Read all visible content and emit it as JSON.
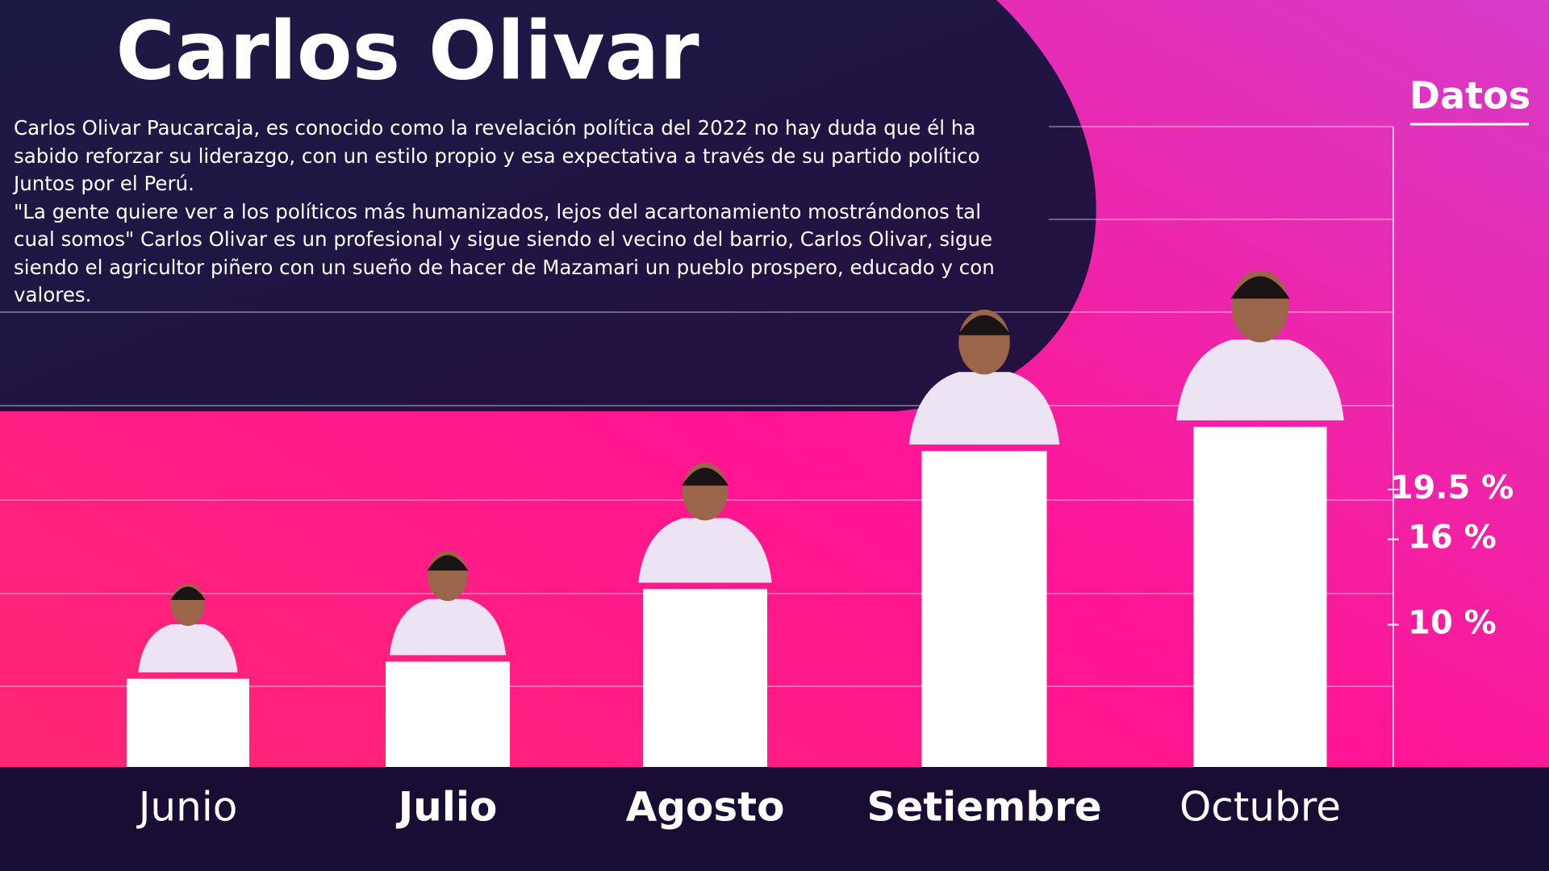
{
  "chart_data": {
    "type": "bar",
    "title": "Carlos Olivar",
    "description": [
      "Carlos Olivar Paucarcaja, es conocido como la revelación política del 2022 no hay duda que él ha sabido reforzar su liderazgo, con un estilo propio y esa expectativa a través de su partido político Juntos por el Perú.",
      "\"La gente quiere ver a los políticos más humanizados, lejos del acartonamiento mostrándonos tal cual somos\" Carlos Olivar es un profesional y sigue siendo el vecino del barrio, Carlos Olivar, sigue siendo el agricultor piñero con un sueño de hacer de Mazamari un pueblo prospero, educado y con valores."
    ],
    "axis_title": "Datos",
    "categories": [
      "Junio",
      "Julio",
      "Agosto",
      "Setiembre",
      "Octubre"
    ],
    "values": [
      6.2,
      7.4,
      12.5,
      22.2,
      23.9
    ],
    "color": "#ffffff",
    "ylim": [
      0,
      45
    ],
    "yticks": [
      {
        "value": 10,
        "label": "10 %"
      },
      {
        "value": 16,
        "label": "16 %"
      },
      {
        "value": 19.5,
        "label": "19.5 %"
      }
    ]
  }
}
